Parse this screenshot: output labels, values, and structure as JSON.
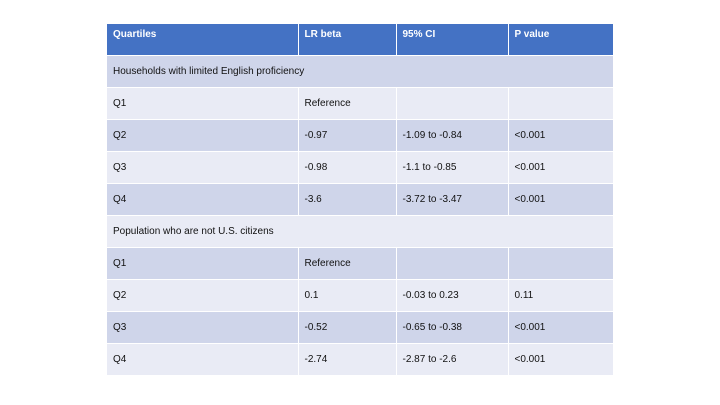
{
  "table": {
    "headers": [
      "Quartiles",
      "LR beta",
      "95% CI",
      "P value"
    ],
    "sections": [
      {
        "title": "Households with limited English proficiency",
        "rows": [
          [
            "Q1",
            "Reference",
            "",
            ""
          ],
          [
            "Q2",
            "-0.97",
            "-1.09 to -0.84",
            "<0.001"
          ],
          [
            "Q3",
            "-0.98",
            "-1.1 to -0.85",
            "<0.001"
          ],
          [
            "Q4",
            "-3.6",
            "-3.72 to -3.47",
            "<0.001"
          ]
        ]
      },
      {
        "title": "Population who are not U.S. citizens",
        "rows": [
          [
            "Q1",
            "Reference",
            "",
            ""
          ],
          [
            "Q2",
            "0.1",
            "-0.03 to 0.23",
            "0.11"
          ],
          [
            "Q3",
            "-0.52",
            "-0.65 to -0.38",
            "<0.001"
          ],
          [
            "Q4",
            "-2.74",
            "-2.87 to -2.6",
            "<0.001"
          ]
        ]
      }
    ]
  },
  "colors": {
    "header_bg": "#4472c4",
    "row_dark": "#cfd5ea",
    "row_light": "#e9ebf5"
  }
}
